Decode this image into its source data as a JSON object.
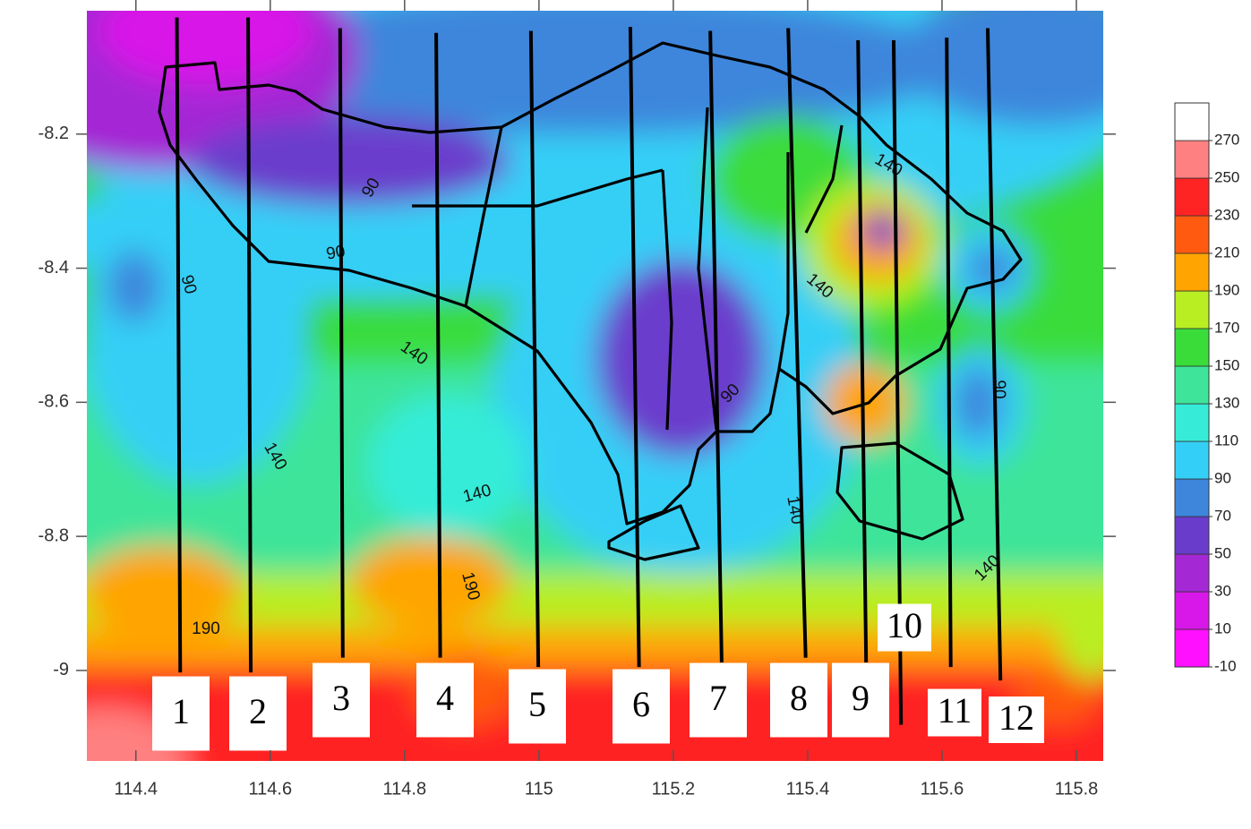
{
  "chart_data": {
    "type": "contour",
    "xlim": [
      114.327,
      115.84
    ],
    "ylim": [
      -9.135,
      -8.016
    ],
    "xticks": [
      114.4,
      114.6,
      114.8,
      115,
      115.2,
      115.4,
      115.6,
      115.8
    ],
    "yticks": [
      -8.2,
      -8.4,
      -8.6,
      -8.8,
      -9
    ],
    "colorbar": {
      "ticks": [
        -10,
        10,
        30,
        50,
        70,
        90,
        110,
        130,
        150,
        170,
        190,
        210,
        230,
        250,
        270
      ],
      "lim": [
        -10,
        290
      ],
      "colors": [
        "#ff10ff",
        "#d818e8",
        "#a428d4",
        "#6a3ccc",
        "#3e86dc",
        "#34cff6",
        "#36ecd8",
        "#3ee49a",
        "#3adc3a",
        "#b8ee22",
        "#ffa400",
        "#ff5a10",
        "#ff2424",
        "#ff8080",
        "#ffffff"
      ]
    },
    "contour_labels": [
      90,
      90,
      90,
      90,
      90,
      140,
      140,
      140,
      140,
      140,
      140,
      140,
      190,
      190
    ],
    "profiles": [
      {
        "name": "1",
        "x": [
          114.461,
          114.466
        ],
        "y": [
          -8.026,
          -9.003
        ]
      },
      {
        "name": "2",
        "x": [
          114.567,
          114.571
        ],
        "y": [
          -8.026,
          -9.003
        ]
      },
      {
        "name": "3",
        "x": [
          114.704,
          114.708
        ],
        "y": [
          -8.042,
          -8.981
        ]
      },
      {
        "name": "4",
        "x": [
          114.847,
          114.853
        ],
        "y": [
          -8.049,
          -8.981
        ]
      },
      {
        "name": "5",
        "x": [
          114.988,
          114.999
        ],
        "y": [
          -8.046,
          -8.995
        ]
      },
      {
        "name": "6",
        "x": [
          115.136,
          115.149
        ],
        "y": [
          -8.04,
          -8.995
        ]
      },
      {
        "name": "7",
        "x": [
          115.255,
          115.272
        ],
        "y": [
          -8.046,
          -8.988
        ]
      },
      {
        "name": "8",
        "x": [
          115.371,
          115.397
        ],
        "y": [
          -8.042,
          -8.981
        ]
      },
      {
        "name": "9",
        "x": [
          115.475,
          115.487
        ],
        "y": [
          -8.06,
          -8.988
        ]
      },
      {
        "name": "10",
        "x": [
          115.528,
          115.539
        ],
        "y": [
          -8.06,
          -9.081
        ]
      },
      {
        "name": "11",
        "x": [
          115.607,
          115.613
        ],
        "y": [
          -8.056,
          -8.995
        ]
      },
      {
        "name": "12",
        "x": [
          115.668,
          115.687
        ],
        "y": [
          -8.042,
          -9.015
        ]
      }
    ]
  }
}
